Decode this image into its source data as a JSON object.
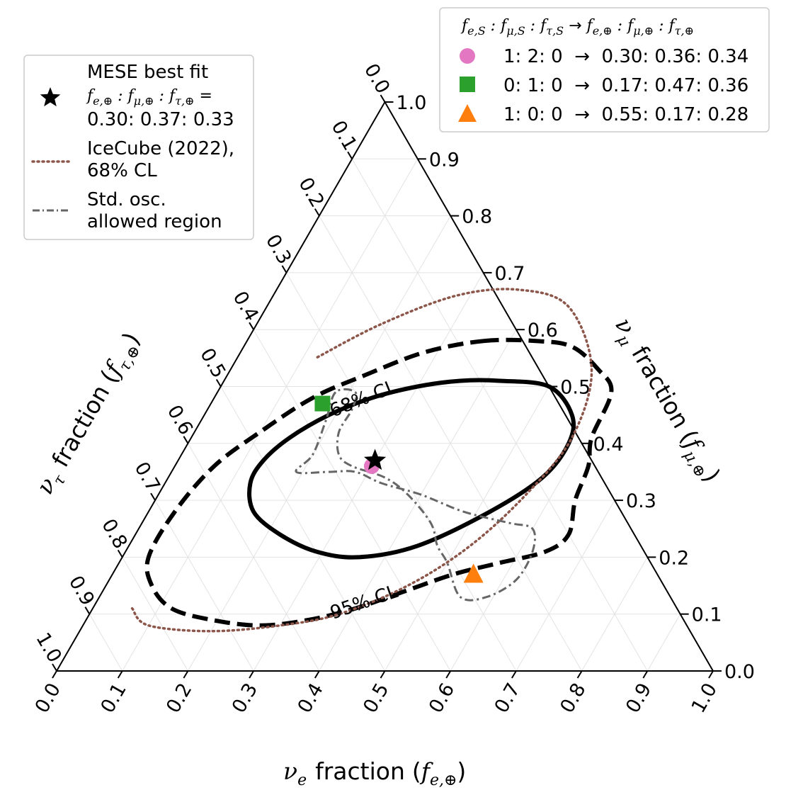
{
  "chart_data": {
    "type": "ternary",
    "axes": {
      "bottom": {
        "label": "fraction",
        "symbol": "ν",
        "subscript": "e",
        "paren": "f",
        "paren_sub": "e,⊕",
        "range": [
          0.0,
          1.0
        ]
      },
      "right": {
        "label": "fraction",
        "symbol": "ν",
        "subscript": "μ",
        "paren": "f",
        "paren_sub": "μ,⊕",
        "range": [
          0.0,
          1.0
        ]
      },
      "left": {
        "label": "fraction",
        "symbol": "ν",
        "subscript": "τ",
        "paren": "f",
        "paren_sub": "τ,⊕",
        "range": [
          0.0,
          1.0
        ]
      }
    },
    "ticks": [
      "0.0",
      "0.1",
      "0.2",
      "0.3",
      "0.4",
      "0.5",
      "0.6",
      "0.7",
      "0.8",
      "0.9",
      "1.0"
    ],
    "grid": true,
    "best_fit": {
      "name": "MESE best fit",
      "fe": 0.3,
      "fmu": 0.37,
      "ftau": 0.33,
      "marker": "star",
      "color": "#000000"
    },
    "source_points": [
      {
        "source": "1: 2: 0",
        "earth": "0.30: 0.36: 0.34",
        "fe": 0.3,
        "fmu": 0.36,
        "ftau": 0.34,
        "marker": "circle",
        "color": "#e377c2"
      },
      {
        "source": "0: 1: 0",
        "earth": "0.17: 0.47: 0.36",
        "fe": 0.17,
        "fmu": 0.47,
        "ftau": 0.36,
        "marker": "square",
        "color": "#2ca02c"
      },
      {
        "source": "1: 0: 0",
        "earth": "0.55: 0.17: 0.28",
        "fe": 0.55,
        "fmu": 0.17,
        "ftau": 0.28,
        "marker": "triangle",
        "color": "#ff7f0e"
      }
    ],
    "contours": [
      {
        "name": "68% CL",
        "style": "solid",
        "color": "#000000",
        "points": [
          [
            0.42,
            0.51
          ],
          [
            0.5,
            0.5
          ],
          [
            0.56,
            0.45
          ],
          [
            0.58,
            0.4
          ],
          [
            0.57,
            0.34
          ],
          [
            0.52,
            0.28
          ],
          [
            0.44,
            0.22
          ],
          [
            0.36,
            0.2
          ],
          [
            0.29,
            0.21
          ],
          [
            0.22,
            0.24
          ],
          [
            0.16,
            0.28
          ],
          [
            0.13,
            0.33
          ],
          [
            0.13,
            0.37
          ],
          [
            0.15,
            0.41
          ],
          [
            0.19,
            0.45
          ],
          [
            0.24,
            0.48
          ],
          [
            0.3,
            0.5
          ],
          [
            0.36,
            0.51
          ]
        ]
      },
      {
        "name": "95% CL",
        "style": "dashed",
        "color": "#000000",
        "points": [
          [
            0.36,
            0.58
          ],
          [
            0.44,
            0.58
          ],
          [
            0.5,
            0.57
          ],
          [
            0.56,
            0.53
          ],
          [
            0.6,
            0.49
          ],
          [
            0.61,
            0.41
          ],
          [
            0.63,
            0.36
          ],
          [
            0.64,
            0.3
          ],
          [
            0.66,
            0.24
          ],
          [
            0.64,
            0.21
          ],
          [
            0.58,
            0.19
          ],
          [
            0.52,
            0.17
          ],
          [
            0.46,
            0.14
          ],
          [
            0.4,
            0.11
          ],
          [
            0.34,
            0.09
          ],
          [
            0.27,
            0.08
          ],
          [
            0.19,
            0.09
          ],
          [
            0.12,
            0.11
          ],
          [
            0.07,
            0.15
          ],
          [
            0.04,
            0.2
          ],
          [
            0.04,
            0.28
          ],
          [
            0.06,
            0.36
          ],
          [
            0.1,
            0.42
          ],
          [
            0.15,
            0.48
          ],
          [
            0.21,
            0.52
          ],
          [
            0.28,
            0.56
          ]
        ]
      },
      {
        "name": "IceCube (2022), 68% CL",
        "style": "dotted",
        "color": "#8c564b",
        "points": [
          [
            0.06,
            0.11
          ],
          [
            0.1,
            0.08
          ],
          [
            0.2,
            0.07
          ],
          [
            0.3,
            0.08
          ],
          [
            0.38,
            0.1
          ],
          [
            0.46,
            0.15
          ],
          [
            0.52,
            0.22
          ],
          [
            0.56,
            0.31
          ],
          [
            0.58,
            0.41
          ],
          [
            0.55,
            0.53
          ],
          [
            0.46,
            0.64
          ],
          [
            0.37,
            0.67
          ],
          [
            0.28,
            0.66
          ],
          [
            0.19,
            0.61
          ],
          [
            0.12,
            0.55
          ]
        ]
      },
      {
        "name": "Std. osc. allowed region",
        "style": "dashdot",
        "color": "#666666",
        "points": [
          [
            0.18,
            0.49
          ],
          [
            0.19,
            0.44
          ],
          [
            0.2,
            0.38
          ],
          [
            0.19,
            0.35
          ],
          [
            0.24,
            0.35
          ],
          [
            0.28,
            0.35
          ],
          [
            0.33,
            0.33
          ],
          [
            0.4,
            0.31
          ],
          [
            0.48,
            0.28
          ],
          [
            0.56,
            0.26
          ],
          [
            0.6,
            0.25
          ],
          [
            0.62,
            0.21
          ],
          [
            0.62,
            0.16
          ],
          [
            0.59,
            0.13
          ],
          [
            0.55,
            0.13
          ],
          [
            0.5,
            0.19
          ],
          [
            0.47,
            0.22
          ],
          [
            0.44,
            0.26
          ],
          [
            0.38,
            0.31
          ],
          [
            0.33,
            0.34
          ],
          [
            0.27,
            0.36
          ],
          [
            0.24,
            0.38
          ],
          [
            0.22,
            0.42
          ],
          [
            0.22,
            0.46
          ],
          [
            0.21,
            0.49
          ]
        ]
      }
    ],
    "annotations": [
      "68% CL",
      "95% CL"
    ]
  },
  "legend_left": {
    "best_fit_label": "MESE best fit",
    "best_fit_values": "0.30: 0.37: 0.33",
    "icecube_label_line1": "IceCube (2022),",
    "icecube_label_line2": "68% CL",
    "stdosc_label_line1": "Std. osc.",
    "stdosc_label_line2": "allowed region"
  },
  "legend_right": {
    "rows": [
      {
        "text": "1: 2: 0  →  0.30: 0.36: 0.34"
      },
      {
        "text": "0: 1: 0  →  0.17: 0.47: 0.36"
      },
      {
        "text": "1: 0: 0  →  0.55: 0.17: 0.28"
      }
    ]
  },
  "colors": {
    "grid": "#e3e3e3",
    "frame": "#000000",
    "legend_border": "#cccccc"
  }
}
